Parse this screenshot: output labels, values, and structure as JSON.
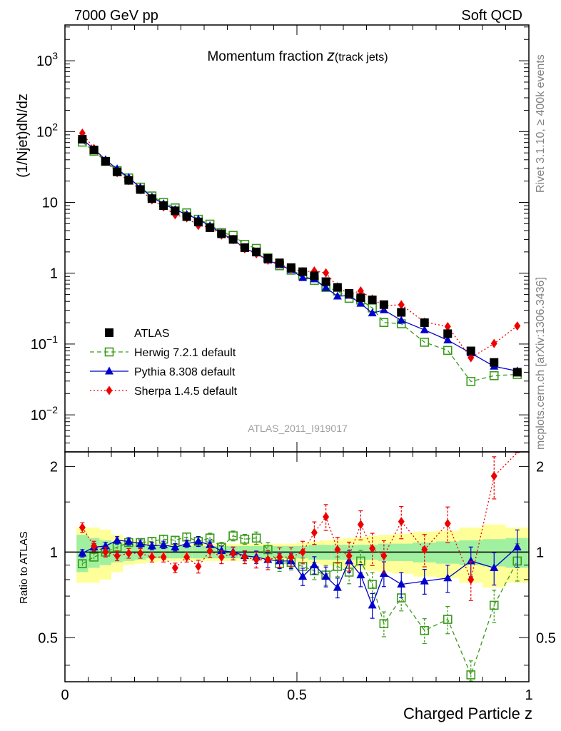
{
  "header": {
    "left_label": "7000 GeV pp",
    "right_label": "Soft QCD"
  },
  "side_labels": {
    "rivet": "Rivet 3.1.10, ≥ 400k events",
    "mcplots": "mcplots.cern.ch [arXiv:1306.3436]"
  },
  "colors": {
    "atlas": "#000000",
    "herwig": "#3a9a1a",
    "pythia": "#0000cc",
    "sherpa": "#ee0000",
    "band_inner": "#a0f0a0",
    "band_outer": "#ffff99"
  },
  "chart_data": {
    "type": "scatter",
    "title_main": "Momentum fraction ",
    "title_sym": "z",
    "title_sub": "(track jets)",
    "analysis_tag": "ATLAS_2011_I919017",
    "xlabel": "Charged Particle z",
    "ylabel_main": "(1/Njet)dN/dz",
    "ylabel_ratio": "Ratio to ATLAS",
    "xlim": [
      0,
      1
    ],
    "ylim_main": [
      0.003,
      3200
    ],
    "ylim_ratio": [
      0.35,
      2.25
    ],
    "x_ticks": [
      {
        "v": 0,
        "label": "0"
      },
      {
        "v": 0.5,
        "label": "0.5"
      },
      {
        "v": 1,
        "label": "1"
      }
    ],
    "y_ticks_main": [
      {
        "v": 0.01,
        "base": "10",
        "exp": "−2"
      },
      {
        "v": 0.1,
        "base": "10",
        "exp": "−1"
      },
      {
        "v": 1,
        "base": "1",
        "exp": ""
      },
      {
        "v": 10,
        "base": "10",
        "exp": ""
      },
      {
        "v": 100,
        "base": "10",
        "exp": "2"
      },
      {
        "v": 1000,
        "base": "10",
        "exp": "3"
      }
    ],
    "y_ticks_ratio": [
      {
        "v": 0.5,
        "label": "0.5"
      },
      {
        "v": 1,
        "label": "1"
      },
      {
        "v": 2,
        "label": "2"
      }
    ],
    "legend": [
      {
        "key": "atlas",
        "label": "ATLAS"
      },
      {
        "key": "herwig",
        "label": "Herwig 7.2.1 default"
      },
      {
        "key": "pythia",
        "label": "Pythia 8.308 default"
      },
      {
        "key": "sherpa",
        "label": "Sherpa 1.4.5 default"
      }
    ],
    "x": [
      0.0375,
      0.0625,
      0.0875,
      0.1125,
      0.1375,
      0.1625,
      0.1875,
      0.2125,
      0.2375,
      0.2625,
      0.2875,
      0.3125,
      0.3375,
      0.3625,
      0.3875,
      0.4125,
      0.4375,
      0.4625,
      0.4875,
      0.5125,
      0.5375,
      0.5625,
      0.5875,
      0.6125,
      0.6375,
      0.6625,
      0.6875,
      0.725,
      0.775,
      0.825,
      0.875,
      0.925,
      0.975
    ],
    "atlas": [
      78,
      55,
      38,
      27,
      20.5,
      15.2,
      11.3,
      9.0,
      7.6,
      6.3,
      5.3,
      4.4,
      3.6,
      3.0,
      2.3,
      2.0,
      1.62,
      1.4,
      1.2,
      1.05,
      0.92,
      0.76,
      0.63,
      0.52,
      0.45,
      0.42,
      0.36,
      0.28,
      0.2,
      0.14,
      0.08,
      0.055,
      0.04
    ],
    "herwig_ratio": [
      0.91,
      0.96,
      1.0,
      1.04,
      1.08,
      1.08,
      1.09,
      1.11,
      1.1,
      1.13,
      1.09,
      1.12,
      1.04,
      1.14,
      1.11,
      1.12,
      1.02,
      0.91,
      0.92,
      0.89,
      0.86,
      0.83,
      0.89,
      0.85,
      0.93,
      0.77,
      0.56,
      0.69,
      0.53,
      0.58,
      0.37,
      0.65,
      0.93
    ],
    "pythia_ratio": [
      0.99,
      1.04,
      1.05,
      1.1,
      1.09,
      1.07,
      1.05,
      1.06,
      1.04,
      1.07,
      1.09,
      1.06,
      1.01,
      1.0,
      0.97,
      0.96,
      0.94,
      0.93,
      0.93,
      0.82,
      0.9,
      0.82,
      0.75,
      0.93,
      0.83,
      0.65,
      0.84,
      0.77,
      0.79,
      0.81,
      0.93,
      0.88,
      1.04
    ],
    "sherpa_ratio": [
      1.22,
      1.05,
      1.0,
      0.97,
      0.99,
      0.99,
      0.96,
      0.96,
      0.88,
      0.96,
      0.89,
      1.01,
      0.96,
      0.99,
      0.96,
      0.94,
      0.94,
      0.96,
      0.96,
      1.0,
      1.17,
      1.33,
      1.02,
      0.97,
      1.25,
      1.03,
      0.97,
      1.28,
      1.02,
      1.26,
      0.8,
      1.85,
      4.5
    ],
    "ratio_err": [
      0.03,
      0.03,
      0.03,
      0.03,
      0.03,
      0.03,
      0.03,
      0.03,
      0.03,
      0.03,
      0.04,
      0.04,
      0.04,
      0.04,
      0.04,
      0.05,
      0.06,
      0.06,
      0.06,
      0.07,
      0.07,
      0.08,
      0.08,
      0.09,
      0.09,
      0.1,
      0.1,
      0.1,
      0.1,
      0.11,
      0.12,
      0.13,
      0.15
    ],
    "band_inner": [
      0.15,
      0.12,
      0.1,
      0.08,
      0.07,
      0.06,
      0.05,
      0.05,
      0.05,
      0.05,
      0.05,
      0.05,
      0.05,
      0.05,
      0.05,
      0.05,
      0.05,
      0.05,
      0.05,
      0.05,
      0.06,
      0.06,
      0.06,
      0.06,
      0.06,
      0.06,
      0.07,
      0.07,
      0.08,
      0.09,
      0.1,
      0.11,
      0.12
    ],
    "band_outer": [
      0.22,
      0.22,
      0.2,
      0.15,
      0.1,
      0.09,
      0.08,
      0.07,
      0.07,
      0.07,
      0.07,
      0.07,
      0.07,
      0.07,
      0.07,
      0.07,
      0.07,
      0.07,
      0.07,
      0.08,
      0.09,
      0.1,
      0.11,
      0.12,
      0.13,
      0.14,
      0.15,
      0.16,
      0.18,
      0.19,
      0.22,
      0.25,
      0.22
    ]
  }
}
